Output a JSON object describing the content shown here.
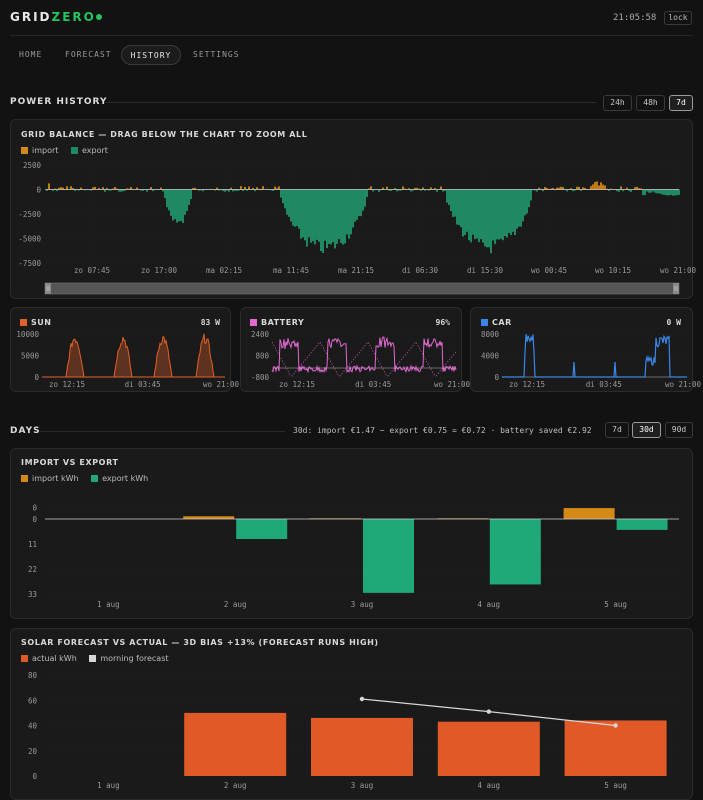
{
  "header": {
    "logo_grid": "GRID",
    "logo_zero": "ZERO",
    "clock": "21:05:58",
    "lock_label": "lock",
    "status_color": "#22c55e"
  },
  "nav": {
    "tabs": [
      {
        "label": "HOME"
      },
      {
        "label": "FORECAST"
      },
      {
        "label": "HISTORY",
        "active": true
      },
      {
        "label": "SETTINGS"
      }
    ]
  },
  "power_history": {
    "title": "POWER HISTORY",
    "ranges": [
      {
        "label": "24h"
      },
      {
        "label": "48h"
      },
      {
        "label": "7d",
        "active": true
      }
    ]
  },
  "grid_balance": {
    "title": "GRID BALANCE — DRAG BELOW THE CHART TO ZOOM ALL",
    "legend": [
      {
        "label": "import",
        "color": "#d48a16"
      },
      {
        "label": "export",
        "color": "#1f8a62"
      }
    ],
    "y_ticks": [
      "2500",
      "0",
      "-2500",
      "-5000",
      "-7500"
    ],
    "x_ticks": [
      "zo 07:45",
      "zo 17:00",
      "ma 02:15",
      "ma 11:45",
      "ma 21:15",
      "di 06:30",
      "di 15:30",
      "wo 00:45",
      "wo 10:15",
      "wo 21:00"
    ]
  },
  "mini": {
    "sun": {
      "label": "SUN",
      "value": "83 W",
      "color": "#e0612a",
      "y_ticks": [
        "10000",
        "5000",
        "0"
      ],
      "x_ticks": [
        "zo 12:15",
        "di 03:45",
        "wo 21:00"
      ]
    },
    "battery": {
      "label": "BATTERY",
      "value": "96%",
      "color": "#e06ad1",
      "y_ticks": [
        "2400",
        "800",
        "-800"
      ],
      "x_ticks": [
        "zo 12:15",
        "di 03:45",
        "wo 21:00"
      ]
    },
    "car": {
      "label": "CAR",
      "value": "0 W",
      "color": "#3a86e8",
      "y_ticks": [
        "8000",
        "4000",
        "0"
      ],
      "x_ticks": [
        "zo 12:15",
        "di 03:45",
        "wo 21:00"
      ]
    }
  },
  "days": {
    "title": "DAYS",
    "summary": "30d: import €1.47 − export €0.75 = €0.72 · battery saved €2.92",
    "ranges": [
      {
        "label": "7d"
      },
      {
        "label": "30d",
        "active": true
      },
      {
        "label": "90d"
      }
    ]
  },
  "chart_data": [
    {
      "type": "bar",
      "title": "IMPORT VS EXPORT",
      "categories": [
        "1 aug",
        "2 aug",
        "3 aug",
        "4 aug",
        "5 aug"
      ],
      "y_ticks": [
        "0",
        "0",
        "11",
        "22",
        "33"
      ],
      "series": [
        {
          "name": "import kWh",
          "color": "#d48a16",
          "values": [
            0,
            1.2,
            0.3,
            0.3,
            4.8
          ]
        },
        {
          "name": "export kWh",
          "color": "#1fa878",
          "values": [
            0,
            8.8,
            32.5,
            28.8,
            4.8
          ]
        }
      ],
      "ylim": [
        -5,
        33
      ]
    },
    {
      "type": "bar",
      "title": "SOLAR FORECAST VS ACTUAL — 3D BIAS +13% (FORECAST RUNS HIGH)",
      "categories": [
        "1 aug",
        "2 aug",
        "3 aug",
        "4 aug",
        "5 aug"
      ],
      "y_ticks": [
        "80",
        "60",
        "40",
        "20",
        "0"
      ],
      "series": [
        {
          "name": "actual kWh",
          "type": "bar",
          "color": "#e05a28",
          "values": [
            0,
            50,
            46,
            43,
            44
          ]
        },
        {
          "name": "morning forecast",
          "type": "line",
          "color": "#d6d6d6",
          "values": [
            null,
            null,
            61,
            51,
            40
          ]
        }
      ],
      "ylim": [
        0,
        80
      ]
    }
  ]
}
